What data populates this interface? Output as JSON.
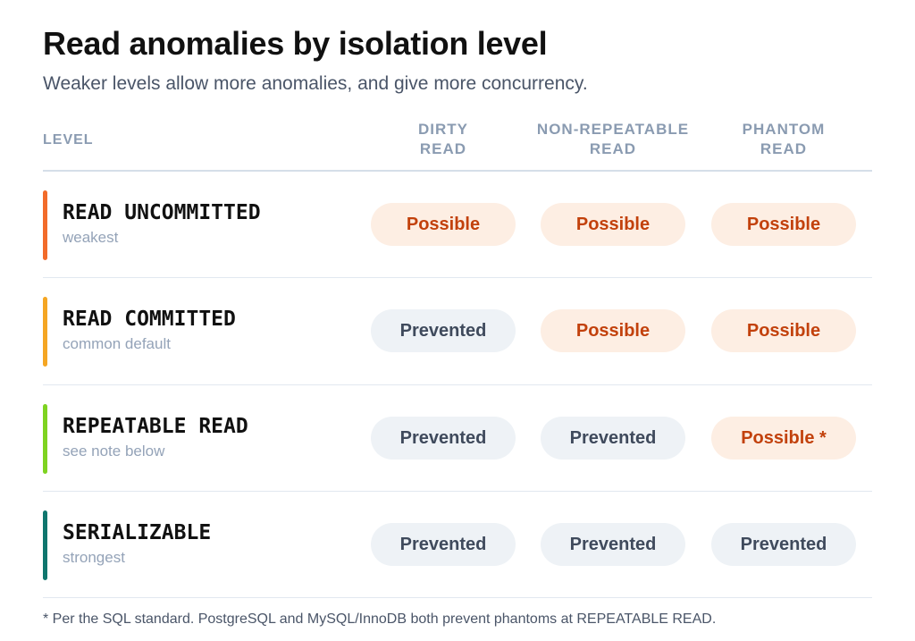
{
  "title": "Read anomalies by isolation level",
  "subtitle": "Weaker levels allow more anomalies, and give more concurrency.",
  "columns": {
    "level": "LEVEL",
    "dirty": [
      "DIRTY",
      "READ"
    ],
    "nonrepeatable": [
      "NON-REPEATABLE",
      "READ"
    ],
    "phantom": [
      "PHANTOM",
      "READ"
    ]
  },
  "rows": [
    {
      "name": "READ UNCOMMITTED",
      "note": "weakest",
      "accent_color": "#f26b2a",
      "cells": [
        {
          "text": "Possible",
          "kind": "possible"
        },
        {
          "text": "Possible",
          "kind": "possible"
        },
        {
          "text": "Possible",
          "kind": "possible"
        }
      ]
    },
    {
      "name": "READ COMMITTED",
      "note": "common default",
      "accent_color": "#f5a623",
      "cells": [
        {
          "text": "Prevented",
          "kind": "prevented"
        },
        {
          "text": "Possible",
          "kind": "possible"
        },
        {
          "text": "Possible",
          "kind": "possible"
        }
      ]
    },
    {
      "name": "REPEATABLE READ",
      "note": "see note below",
      "accent_color": "#7ed321",
      "cells": [
        {
          "text": "Prevented",
          "kind": "prevented"
        },
        {
          "text": "Prevented",
          "kind": "prevented"
        },
        {
          "text": "Possible *",
          "kind": "possible"
        }
      ]
    },
    {
      "name": "SERIALIZABLE",
      "note": "strongest",
      "accent_color": "#0f766e",
      "cells": [
        {
          "text": "Prevented",
          "kind": "prevented"
        },
        {
          "text": "Prevented",
          "kind": "prevented"
        },
        {
          "text": "Prevented",
          "kind": "prevented"
        }
      ]
    }
  ],
  "footnote": "* Per the SQL standard. PostgreSQL and MySQL/InnoDB both prevent phantoms at REPEATABLE READ."
}
